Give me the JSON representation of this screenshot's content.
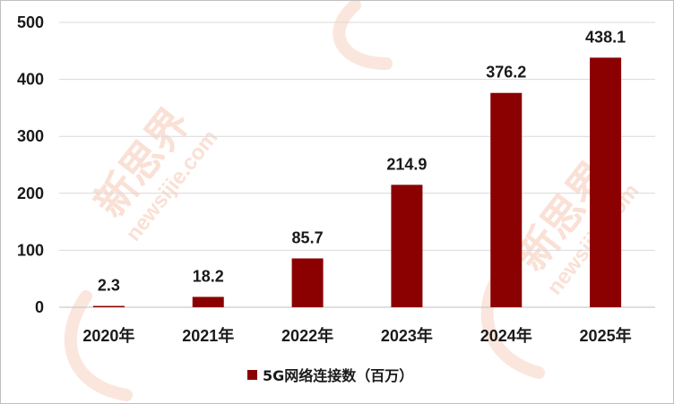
{
  "chart_data": {
    "type": "bar",
    "categories": [
      "2020年",
      "2021年",
      "2022年",
      "2023年",
      "2024年",
      "2025年"
    ],
    "series": [
      {
        "name": "5G网络连接数（百万）",
        "values": [
          2.3,
          18.2,
          85.7,
          214.9,
          376.2,
          438.1
        ]
      }
    ],
    "value_labels": [
      "2.3",
      "18.2",
      "85.7",
      "214.9",
      "376.2",
      "438.1"
    ],
    "yticks": [
      "0",
      "100",
      "200",
      "300",
      "400",
      "500"
    ],
    "ylim": [
      0,
      500
    ],
    "grid": true,
    "legend_position": "bottom",
    "bar_color": "#8b0000",
    "grid_color": "#d9d9d9"
  },
  "watermark": {
    "text": "新思界",
    "url": "newsijie.com",
    "color": "#f6c7b3"
  }
}
